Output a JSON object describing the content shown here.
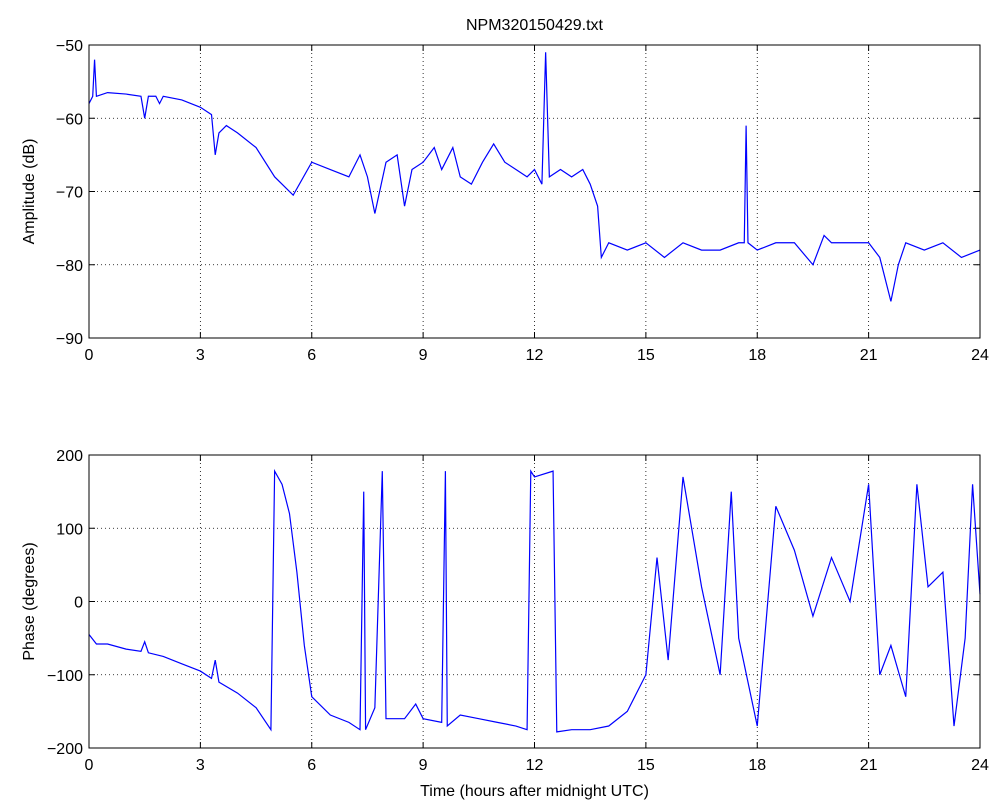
{
  "chart_data": [
    {
      "type": "line",
      "title": "NPM320150429.txt",
      "ylabel": "Amplitude (dB)",
      "color": "#0000ff",
      "grid": true,
      "x": [
        0,
        0.1,
        0.15,
        0.2,
        0.5,
        1,
        1.4,
        1.5,
        1.6,
        1.8,
        1.9,
        2,
        2.5,
        3,
        3.3,
        3.4,
        3.5,
        3.7,
        4,
        4.5,
        5,
        5.5,
        6,
        6.5,
        7,
        7.3,
        7.5,
        7.7,
        8,
        8.3,
        8.5,
        8.7,
        9,
        9.3,
        9.5,
        9.8,
        10,
        10.3,
        10.6,
        10.9,
        11.2,
        11.5,
        11.8,
        12,
        12.2,
        12.3,
        12.4,
        12.7,
        13,
        13.3,
        13.5,
        13.7,
        13.8,
        14,
        14.5,
        15,
        15.5,
        16,
        16.5,
        17,
        17.5,
        17.65,
        17.7,
        17.75,
        18,
        18.5,
        19,
        19.5,
        19.8,
        20,
        20.5,
        21,
        21.3,
        21.6,
        21.8,
        22,
        22.5,
        23,
        23.5,
        24
      ],
      "values": [
        -58,
        -57,
        -52,
        -57,
        -56.5,
        -56.7,
        -57,
        -60,
        -57,
        -57,
        -58,
        -57,
        -57.5,
        -58.5,
        -59.5,
        -65,
        -62,
        -61,
        -62,
        -64,
        -68,
        -70.5,
        -66,
        -67,
        -68,
        -65,
        -68,
        -73,
        -66,
        -65,
        -72,
        -67,
        -66,
        -64,
        -67,
        -64,
        -68,
        -69,
        -66,
        -63.5,
        -66,
        -67,
        -68,
        -67,
        -69,
        -51,
        -68,
        -67,
        -68,
        -67,
        -69,
        -72,
        -79,
        -77,
        -78,
        -77,
        -79,
        -77,
        -78,
        -78,
        -77,
        -77,
        -61,
        -77,
        -78,
        -77,
        -77,
        -80,
        -76,
        -77,
        -77,
        -77,
        -79,
        -85,
        -80,
        -77,
        -78,
        -77,
        -79,
        -78
      ],
      "xlim": [
        0,
        24
      ],
      "xticks": [
        0,
        3,
        6,
        9,
        12,
        15,
        18,
        21,
        24
      ],
      "ylim": [
        -90,
        -50
      ],
      "yticks": [
        {
          "value": -90,
          "label": "−90"
        },
        {
          "value": -80,
          "label": "−80"
        },
        {
          "value": -70,
          "label": "−70"
        },
        {
          "value": -60,
          "label": "−60"
        },
        {
          "value": -50,
          "label": "−50"
        }
      ]
    },
    {
      "type": "line",
      "xlabel": "Time (hours after midnight UTC)",
      "ylabel": "Phase (degrees)",
      "color": "#0000ff",
      "grid": true,
      "x": [
        0,
        0.2,
        0.5,
        1,
        1.4,
        1.5,
        1.6,
        2,
        2.5,
        3,
        3.3,
        3.4,
        3.5,
        4,
        4.5,
        4.9,
        5,
        5.2,
        5.4,
        5.6,
        5.8,
        6,
        6.5,
        7,
        7.3,
        7.4,
        7.45,
        7.7,
        7.9,
        8,
        8.5,
        8.8,
        9,
        9.5,
        9.6,
        9.65,
        10,
        10.5,
        11,
        11.5,
        11.8,
        11.9,
        12,
        12.5,
        12.6,
        13,
        13.5,
        14,
        14.5,
        15,
        15.3,
        15.6,
        16,
        16.5,
        17,
        17.3,
        17.5,
        18,
        18.5,
        19,
        19.5,
        20,
        20.5,
        21,
        21.3,
        21.6,
        22,
        22.3,
        22.6,
        23,
        23.3,
        23.6,
        23.8,
        24
      ],
      "values": [
        -45,
        -58,
        -58,
        -65,
        -68,
        -55,
        -70,
        -75,
        -85,
        -95,
        -105,
        -80,
        -110,
        -125,
        -145,
        -175,
        178,
        160,
        120,
        40,
        -60,
        -130,
        -155,
        -165,
        -175,
        150,
        -175,
        -145,
        178,
        -160,
        -160,
        -140,
        -160,
        -165,
        178,
        -170,
        -155,
        -160,
        -165,
        -170,
        -175,
        178,
        170,
        178,
        -178,
        -175,
        -175,
        -170,
        -150,
        -100,
        60,
        -80,
        170,
        20,
        -100,
        150,
        -50,
        -170,
        130,
        70,
        -20,
        60,
        0,
        160,
        -100,
        -60,
        -130,
        160,
        20,
        40,
        -170,
        -50,
        160,
        10
      ],
      "xlim": [
        0,
        24
      ],
      "xticks": [
        0,
        3,
        6,
        9,
        12,
        15,
        18,
        21,
        24
      ],
      "ylim": [
        -200,
        200
      ],
      "yticks": [
        {
          "value": -200,
          "label": "−200"
        },
        {
          "value": -100,
          "label": "−100"
        },
        0,
        100,
        200
      ]
    }
  ]
}
